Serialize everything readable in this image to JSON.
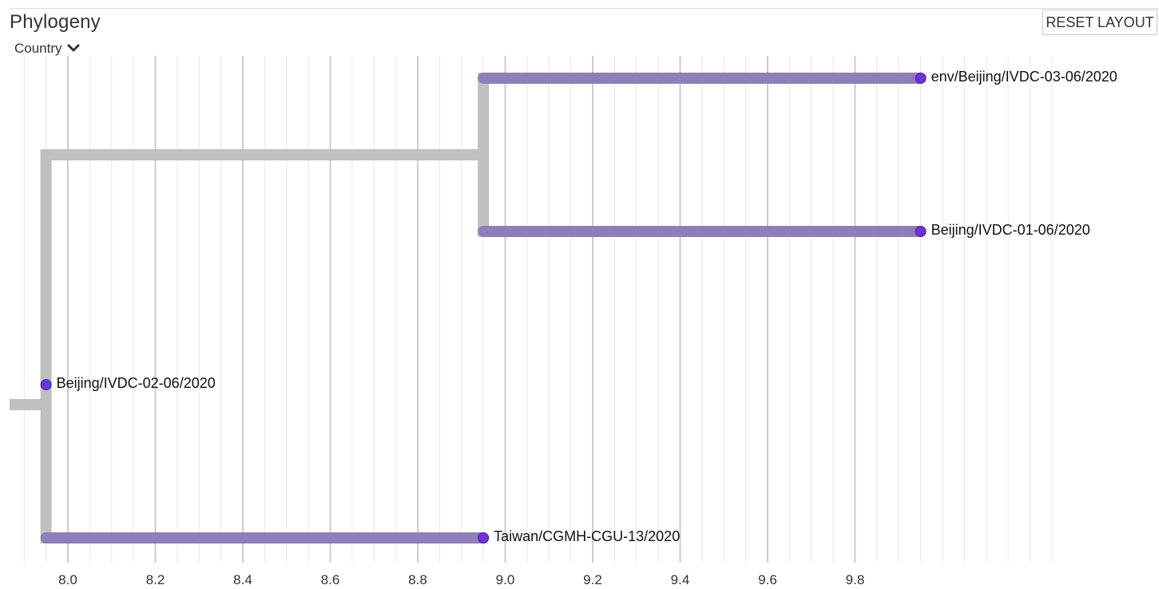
{
  "panel": {
    "title": "Phylogeny",
    "color_by": {
      "label": "Country",
      "icon": "chevron-down-icon"
    },
    "reset_button": "RESET LAYOUT"
  },
  "colors": {
    "branch_internal": "#c0c0c0",
    "branch_tip": "#8e7fb8",
    "tip_dot": "#6a35d4",
    "gridline": "#dddddd",
    "gridline_major": "#cccccc"
  },
  "chart_data": {
    "type": "tree",
    "x_ticks": [
      "8.0",
      "8.2",
      "8.4",
      "8.6",
      "8.8",
      "9.0",
      "9.2",
      "9.4",
      "9.6",
      "9.8"
    ],
    "x_tick_values": [
      8.0,
      8.2,
      8.4,
      8.6,
      8.8,
      9.0,
      9.2,
      9.4,
      9.6,
      9.8
    ],
    "xlim": [
      7.8,
      10.45
    ],
    "grid": true,
    "nodes": {
      "root": {
        "x": 7.855,
        "parent": null
      },
      "A": {
        "x": 7.95,
        "parent": "root"
      },
      "B": {
        "x": 8.95,
        "parent": "A"
      }
    },
    "tips": [
      {
        "label": "env/Beijing/IVDC-03-06/2020",
        "x": 9.95,
        "parent": "B",
        "row": 0
      },
      {
        "label": "Beijing/IVDC-01-06/2020",
        "x": 9.95,
        "parent": "B",
        "row": 1
      },
      {
        "label": "Beijing/IVDC-02-06/2020",
        "x": 7.95,
        "parent": "A",
        "row": 2
      },
      {
        "label": "Taiwan/CGMH-CGU-13/2020",
        "x": 8.95,
        "parent": "A",
        "row": 3
      }
    ]
  }
}
